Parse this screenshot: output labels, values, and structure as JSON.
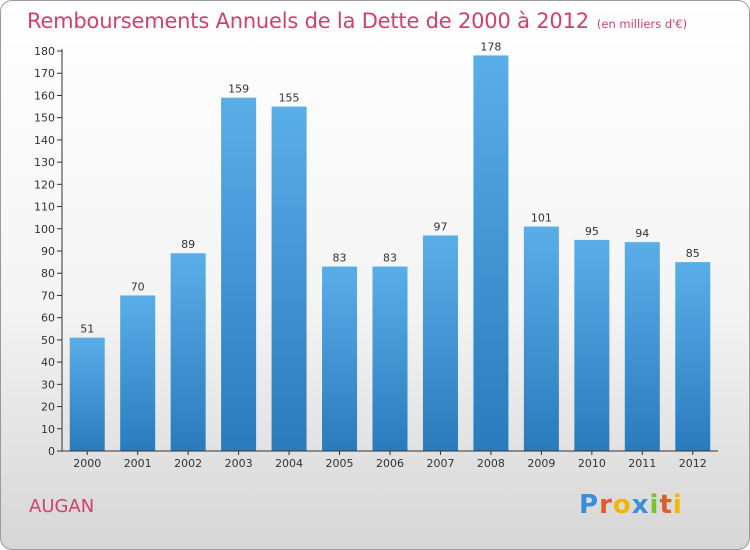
{
  "chart_data": {
    "type": "bar",
    "title": "Remboursements Annuels de la Dette de 2000 à 2012",
    "subtitle": "(en milliers d'€)",
    "categories": [
      "2000",
      "2001",
      "2002",
      "2003",
      "2004",
      "2005",
      "2006",
      "2007",
      "2008",
      "2009",
      "2010",
      "2011",
      "2012"
    ],
    "values": [
      51,
      70,
      89,
      159,
      155,
      83,
      83,
      97,
      178,
      101,
      95,
      94,
      85
    ],
    "ylim": [
      0,
      180
    ],
    "yticks": [
      0,
      10,
      20,
      30,
      40,
      50,
      60,
      70,
      80,
      90,
      100,
      110,
      120,
      130,
      140,
      150,
      160,
      170,
      180
    ],
    "grid": false,
    "xlabel": "",
    "ylabel": "",
    "colors": {
      "bar_top": "#5aaee8",
      "bar_bottom": "#2a7bbd",
      "title": "#d2406a"
    }
  },
  "footer": {
    "location": "AUGAN",
    "logo_text": "Proxiti",
    "logo_colors": [
      "#3a8fd6",
      "#e05a2a",
      "#f2b705",
      "#3a8fd6",
      "#7cbf2f",
      "#e05a2a",
      "#f2b705"
    ]
  }
}
